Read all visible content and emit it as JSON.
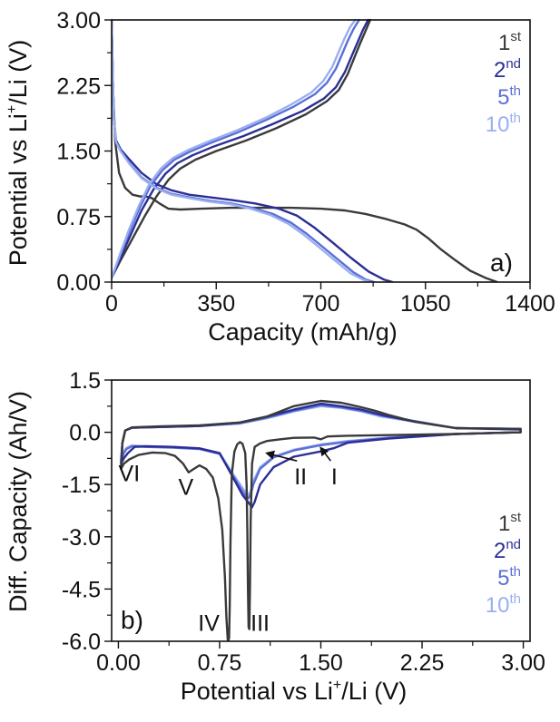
{
  "chart_data": [
    {
      "id": "a",
      "type": "line",
      "panel_label": "a)",
      "title": "",
      "xlabel": "Capacity (mAh/g)",
      "ylabel_parts": [
        "Potential vs  Li",
        "+",
        "/Li (V)"
      ],
      "xlim": [
        0,
        1400
      ],
      "ylim": [
        0,
        3.0
      ],
      "xticks": [
        0,
        350,
        700,
        1050,
        1400
      ],
      "xtick_labels": [
        "0",
        "350",
        "700",
        "1050",
        "1400"
      ],
      "yticks": [
        0,
        0.75,
        1.5,
        2.25,
        3.0
      ],
      "ytick_labels": [
        "0.00",
        "0.75",
        "1.50",
        "2.25",
        "3.00"
      ],
      "grid": false,
      "legend_position": "top-right",
      "legend": [
        {
          "num": "1",
          "sup": "st",
          "color": "#3a3a3a"
        },
        {
          "num": "2",
          "sup": "nd",
          "color": "#2b2e96"
        },
        {
          "num": "5",
          "sup": "th",
          "color": "#5b6fd6"
        },
        {
          "num": "10",
          "sup": "th",
          "color": "#9aaff0"
        }
      ],
      "series": [
        {
          "name": "1st discharge",
          "color": "#3a3a3a",
          "x": [
            0,
            5,
            12,
            25,
            45,
            70,
            95,
            115,
            135,
            160,
            190,
            230,
            300,
            400,
            500,
            600,
            700,
            780,
            850,
            920,
            980,
            1020,
            1060,
            1100,
            1150,
            1200,
            1250,
            1290
          ],
          "y": [
            3.0,
            2.2,
            1.6,
            1.25,
            1.08,
            1.0,
            0.98,
            0.98,
            0.96,
            0.9,
            0.84,
            0.83,
            0.84,
            0.85,
            0.85,
            0.85,
            0.84,
            0.82,
            0.78,
            0.72,
            0.66,
            0.6,
            0.5,
            0.38,
            0.25,
            0.13,
            0.05,
            0.0
          ]
        },
        {
          "name": "1st charge",
          "color": "#3a3a3a",
          "x": [
            0,
            30,
            70,
            110,
            150,
            190,
            230,
            280,
            350,
            450,
            550,
            650,
            720,
            760,
            790,
            810,
            830,
            850,
            865
          ],
          "y": [
            0.05,
            0.25,
            0.5,
            0.75,
            0.98,
            1.17,
            1.3,
            1.4,
            1.5,
            1.62,
            1.76,
            1.92,
            2.07,
            2.2,
            2.38,
            2.55,
            2.72,
            2.88,
            3.0
          ]
        },
        {
          "name": "2nd discharge",
          "color": "#2b2e96",
          "x": [
            0,
            4,
            8,
            15,
            30,
            60,
            100,
            150,
            200,
            260,
            330,
            400,
            480,
            560,
            620,
            680,
            740,
            800,
            860,
            910,
            940
          ],
          "y": [
            3.0,
            2.3,
            1.85,
            1.62,
            1.52,
            1.4,
            1.25,
            1.12,
            1.05,
            1.0,
            0.97,
            0.94,
            0.9,
            0.84,
            0.76,
            0.62,
            0.45,
            0.28,
            0.12,
            0.03,
            0.0
          ]
        },
        {
          "name": "2nd charge",
          "color": "#2b2e96",
          "x": [
            0,
            30,
            65,
            100,
            140,
            180,
            220,
            270,
            340,
            440,
            540,
            640,
            710,
            750,
            780,
            800,
            820,
            840,
            858
          ],
          "y": [
            0.05,
            0.28,
            0.55,
            0.82,
            1.06,
            1.24,
            1.36,
            1.45,
            1.55,
            1.67,
            1.81,
            1.96,
            2.1,
            2.23,
            2.4,
            2.56,
            2.72,
            2.88,
            3.0
          ]
        },
        {
          "name": "5th discharge",
          "color": "#5b6fd6",
          "x": [
            0,
            4,
            8,
            15,
            30,
            60,
            100,
            150,
            200,
            260,
            330,
            400,
            470,
            540,
            600,
            650,
            700,
            760,
            810,
            850,
            878
          ],
          "y": [
            3.0,
            2.3,
            1.85,
            1.6,
            1.5,
            1.36,
            1.2,
            1.08,
            1.01,
            0.97,
            0.93,
            0.9,
            0.85,
            0.78,
            0.68,
            0.56,
            0.42,
            0.25,
            0.11,
            0.03,
            0.0
          ]
        },
        {
          "name": "5th charge",
          "color": "#5b6fd6",
          "x": [
            0,
            28,
            60,
            95,
            130,
            170,
            210,
            260,
            330,
            420,
            520,
            610,
            680,
            720,
            750,
            770,
            790,
            810,
            828
          ],
          "y": [
            0.05,
            0.3,
            0.58,
            0.86,
            1.1,
            1.28,
            1.4,
            1.49,
            1.59,
            1.71,
            1.86,
            2.01,
            2.15,
            2.28,
            2.44,
            2.6,
            2.76,
            2.9,
            3.0
          ]
        },
        {
          "name": "10th discharge",
          "color": "#9aaff0",
          "x": [
            0,
            4,
            8,
            15,
            30,
            60,
            100,
            150,
            200,
            260,
            330,
            400,
            465,
            530,
            590,
            640,
            690,
            750,
            800,
            840,
            865
          ],
          "y": [
            3.0,
            2.3,
            1.85,
            1.6,
            1.5,
            1.35,
            1.19,
            1.07,
            1.0,
            0.96,
            0.92,
            0.89,
            0.84,
            0.77,
            0.67,
            0.55,
            0.41,
            0.24,
            0.1,
            0.03,
            0.0
          ]
        },
        {
          "name": "10th charge",
          "color": "#9aaff0",
          "x": [
            0,
            27,
            58,
            92,
            126,
            165,
            205,
            255,
            325,
            415,
            515,
            600,
            668,
            708,
            738,
            758,
            778,
            798,
            815
          ],
          "y": [
            0.05,
            0.31,
            0.6,
            0.88,
            1.12,
            1.3,
            1.42,
            1.51,
            1.61,
            1.73,
            1.88,
            2.03,
            2.17,
            2.3,
            2.46,
            2.62,
            2.78,
            2.92,
            3.0
          ]
        }
      ]
    },
    {
      "id": "b",
      "type": "line",
      "panel_label": "b)",
      "title": "",
      "xlabel_parts": [
        "Potential vs  Li",
        "+",
        "/Li (V)"
      ],
      "ylabel": "Diff. Capacity (Ah/V)",
      "xlim": [
        -0.05,
        3.05
      ],
      "ylim": [
        -6.0,
        1.5
      ],
      "xticks": [
        0,
        0.75,
        1.5,
        2.25,
        3.0
      ],
      "xtick_labels": [
        "0.00",
        "0.75",
        "1.50",
        "2.25",
        "3.00"
      ],
      "yticks": [
        1.5,
        0.0,
        -1.5,
        -3.0,
        -4.5,
        -6.0
      ],
      "ytick_labels": [
        "1.5",
        "0.0",
        "-1.5",
        "-3.0",
        "-4.5",
        "-6.0"
      ],
      "grid": false,
      "legend_position": "bottom-right",
      "legend": [
        {
          "num": "1",
          "sup": "st",
          "color": "#3a3a3a"
        },
        {
          "num": "2",
          "sup": "nd",
          "color": "#2b2e96"
        },
        {
          "num": "5",
          "sup": "th",
          "color": "#5b6fd6"
        },
        {
          "num": "10",
          "sup": "th",
          "color": "#9aaff0"
        }
      ],
      "annotations": [
        {
          "text": "I",
          "x": 1.6,
          "y": -1.5,
          "arrow_to": [
            1.5,
            -0.45
          ]
        },
        {
          "text": "II",
          "x": 1.35,
          "y": -1.5,
          "arrow_to": [
            1.1,
            -0.6
          ]
        },
        {
          "text": "III",
          "x": 1.05,
          "y": -5.7
        },
        {
          "text": "IV",
          "x": 0.67,
          "y": -5.7
        },
        {
          "text": "V",
          "x": 0.5,
          "y": -1.8
        },
        {
          "text": "VI",
          "x": 0.08,
          "y": -1.4
        }
      ],
      "series": [
        {
          "name": "10th",
          "color": "#9aaff0",
          "x": [
            0.02,
            0.04,
            0.06,
            0.1,
            0.2,
            0.4,
            0.6,
            0.75,
            0.85,
            0.92,
            0.96,
            0.98,
            1.0,
            1.05,
            1.15,
            1.3,
            1.5,
            1.7,
            2.0,
            2.5,
            2.98,
            2.98,
            2.5,
            2.2,
            1.95,
            1.8,
            1.65,
            1.5,
            1.3,
            1.1,
            0.9,
            0.6,
            0.3,
            0.1,
            0.05,
            0.03,
            0.02
          ],
          "y": [
            -0.8,
            -0.55,
            -0.45,
            -0.38,
            -0.4,
            -0.42,
            -0.46,
            -0.6,
            -1.2,
            -1.6,
            -1.8,
            -1.7,
            -1.4,
            -1.0,
            -0.7,
            -0.5,
            -0.35,
            -0.25,
            -0.15,
            -0.05,
            0.0,
            0.1,
            0.12,
            0.3,
            0.45,
            0.6,
            0.7,
            0.75,
            0.6,
            0.4,
            0.25,
            0.18,
            0.15,
            0.13,
            0.05,
            -0.3,
            -0.8
          ]
        },
        {
          "name": "5th",
          "color": "#5b6fd6",
          "x": [
            0.02,
            0.04,
            0.06,
            0.1,
            0.2,
            0.4,
            0.6,
            0.75,
            0.85,
            0.92,
            0.96,
            0.98,
            1.0,
            1.05,
            1.15,
            1.3,
            1.5,
            1.7,
            2.0,
            2.5,
            2.98,
            2.98,
            2.5,
            2.2,
            1.95,
            1.8,
            1.65,
            1.5,
            1.3,
            1.1,
            0.9,
            0.6,
            0.3,
            0.1,
            0.05,
            0.03,
            0.02
          ],
          "y": [
            -0.85,
            -0.6,
            -0.48,
            -0.4,
            -0.42,
            -0.44,
            -0.48,
            -0.62,
            -1.25,
            -1.7,
            -1.9,
            -1.8,
            -1.5,
            -1.05,
            -0.72,
            -0.52,
            -0.37,
            -0.27,
            -0.16,
            -0.05,
            0.0,
            0.1,
            0.12,
            0.32,
            0.48,
            0.62,
            0.72,
            0.78,
            0.62,
            0.42,
            0.26,
            0.18,
            0.15,
            0.13,
            0.05,
            -0.3,
            -0.85
          ]
        },
        {
          "name": "2nd",
          "color": "#2b2e96",
          "x": [
            0.02,
            0.04,
            0.07,
            0.12,
            0.2,
            0.4,
            0.6,
            0.75,
            0.85,
            0.92,
            0.96,
            0.99,
            1.01,
            1.05,
            1.15,
            1.3,
            1.5,
            1.6,
            1.7,
            2.0,
            2.5,
            2.98,
            2.98,
            2.5,
            2.2,
            1.95,
            1.8,
            1.65,
            1.5,
            1.3,
            1.1,
            0.9,
            0.6,
            0.3,
            0.1,
            0.05,
            0.03,
            0.02
          ],
          "y": [
            -0.9,
            -0.75,
            -0.6,
            -0.42,
            -0.4,
            -0.42,
            -0.46,
            -0.6,
            -1.3,
            -1.8,
            -2.0,
            -2.15,
            -2.0,
            -1.5,
            -1.0,
            -0.7,
            -0.55,
            -0.45,
            -0.3,
            -0.18,
            -0.05,
            0.0,
            0.08,
            0.12,
            0.3,
            0.5,
            0.65,
            0.75,
            0.82,
            0.65,
            0.45,
            0.28,
            0.18,
            0.15,
            0.13,
            0.05,
            -0.3,
            -0.9
          ]
        },
        {
          "name": "1st",
          "color": "#3a3a3a",
          "x": [
            0.02,
            0.04,
            0.08,
            0.15,
            0.25,
            0.35,
            0.42,
            0.48,
            0.52,
            0.56,
            0.6,
            0.65,
            0.7,
            0.74,
            0.77,
            0.79,
            0.8,
            0.81,
            0.815,
            0.82,
            0.825,
            0.83,
            0.84,
            0.86,
            0.88,
            0.9,
            0.92,
            0.94,
            0.95,
            0.955,
            0.96,
            0.965,
            0.97,
            0.975,
            0.98,
            0.99,
            1.01,
            1.05,
            1.1,
            1.2,
            1.3,
            1.45,
            1.5,
            1.55,
            1.7,
            2.0,
            2.5,
            2.98,
            2.98,
            2.5,
            2.2,
            2.0,
            1.9,
            1.8,
            1.65,
            1.5,
            1.3,
            1.1,
            0.9,
            0.6,
            0.3,
            0.1,
            0.05,
            0.03,
            0.02
          ],
          "y": [
            -1.05,
            -0.9,
            -0.78,
            -0.65,
            -0.58,
            -0.6,
            -0.68,
            -0.9,
            -1.15,
            -1.05,
            -0.95,
            -1.05,
            -1.3,
            -1.9,
            -2.8,
            -4.2,
            -5.3,
            -5.95,
            -6.0,
            -5.9,
            -5.0,
            -3.2,
            -1.2,
            -0.55,
            -0.35,
            -0.28,
            -0.33,
            -0.6,
            -1.5,
            -2.8,
            -4.5,
            -5.6,
            -5.65,
            -4.5,
            -2.5,
            -0.9,
            -0.42,
            -0.32,
            -0.25,
            -0.2,
            -0.16,
            -0.15,
            -0.2,
            -0.12,
            -0.1,
            -0.08,
            -0.05,
            0.0,
            0.1,
            0.12,
            0.3,
            0.5,
            0.62,
            0.72,
            0.85,
            0.9,
            0.75,
            0.45,
            0.28,
            0.2,
            0.17,
            0.14,
            0.05,
            -0.3,
            -1.05
          ]
        }
      ]
    }
  ]
}
